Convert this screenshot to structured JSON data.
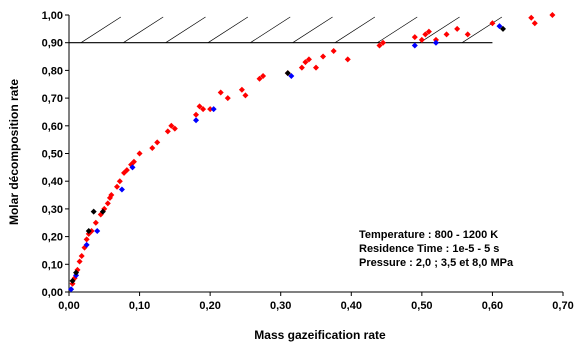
{
  "chart_data": {
    "type": "scatter",
    "xlabel": "Mass gazeification rate",
    "ylabel": "Molar décomposition rate",
    "xlim": [
      0,
      0.7
    ],
    "ylim": [
      0,
      1
    ],
    "x_ticks": [
      "0,00",
      "0,10",
      "0,20",
      "0,30",
      "0,40",
      "0,50",
      "0,60",
      "0,70"
    ],
    "y_ticks": [
      "0,00",
      "0,10",
      "0,20",
      "0,30",
      "0,40",
      "0,50",
      "0,60",
      "0,70",
      "0,80",
      "0,90",
      "1,00"
    ],
    "grid": false,
    "legend": "none",
    "reference_line": {
      "y": 0.9,
      "x_range": [
        0,
        0.6
      ],
      "hatched_region_above": true
    },
    "annotations": [
      "Temperature : 800 - 1200 K",
      "Residence Time : 1e-5 - 5 s",
      "Pressure : 2,0 ; 3,5 et 8,0 MPa"
    ],
    "series": [
      {
        "color": "#ff0000",
        "marker": "diamond",
        "points": [
          [
            0.005,
            0.03
          ],
          [
            0.008,
            0.05
          ],
          [
            0.012,
            0.08
          ],
          [
            0.015,
            0.11
          ],
          [
            0.018,
            0.13
          ],
          [
            0.022,
            0.16
          ],
          [
            0.025,
            0.19
          ],
          [
            0.028,
            0.21
          ],
          [
            0.032,
            0.22
          ],
          [
            0.038,
            0.25
          ],
          [
            0.045,
            0.28
          ],
          [
            0.05,
            0.3
          ],
          [
            0.055,
            0.32
          ],
          [
            0.058,
            0.34
          ],
          [
            0.06,
            0.35
          ],
          [
            0.068,
            0.38
          ],
          [
            0.072,
            0.4
          ],
          [
            0.078,
            0.43
          ],
          [
            0.082,
            0.44
          ],
          [
            0.088,
            0.46
          ],
          [
            0.092,
            0.47
          ],
          [
            0.1,
            0.5
          ],
          [
            0.118,
            0.52
          ],
          [
            0.125,
            0.54
          ],
          [
            0.14,
            0.58
          ],
          [
            0.145,
            0.6
          ],
          [
            0.15,
            0.59
          ],
          [
            0.18,
            0.64
          ],
          [
            0.185,
            0.67
          ],
          [
            0.19,
            0.66
          ],
          [
            0.2,
            0.66
          ],
          [
            0.215,
            0.72
          ],
          [
            0.225,
            0.7
          ],
          [
            0.245,
            0.73
          ],
          [
            0.25,
            0.71
          ],
          [
            0.27,
            0.77
          ],
          [
            0.275,
            0.78
          ],
          [
            0.31,
            0.79
          ],
          [
            0.33,
            0.81
          ],
          [
            0.335,
            0.83
          ],
          [
            0.34,
            0.84
          ],
          [
            0.35,
            0.81
          ],
          [
            0.36,
            0.85
          ],
          [
            0.375,
            0.87
          ],
          [
            0.395,
            0.84
          ],
          [
            0.44,
            0.89
          ],
          [
            0.445,
            0.9
          ],
          [
            0.49,
            0.92
          ],
          [
            0.5,
            0.91
          ],
          [
            0.505,
            0.93
          ],
          [
            0.51,
            0.94
          ],
          [
            0.52,
            0.91
          ],
          [
            0.535,
            0.93
          ],
          [
            0.55,
            0.95
          ],
          [
            0.565,
            0.93
          ],
          [
            0.6,
            0.97
          ],
          [
            0.655,
            0.99
          ],
          [
            0.66,
            0.97
          ],
          [
            0.685,
            1.0
          ]
        ]
      },
      {
        "color": "#0000ff",
        "marker": "diamond",
        "points": [
          [
            0.003,
            0.01
          ],
          [
            0.01,
            0.06
          ],
          [
            0.025,
            0.17
          ],
          [
            0.04,
            0.22
          ],
          [
            0.075,
            0.37
          ],
          [
            0.09,
            0.45
          ],
          [
            0.18,
            0.62
          ],
          [
            0.205,
            0.66
          ],
          [
            0.315,
            0.78
          ],
          [
            0.49,
            0.89
          ],
          [
            0.52,
            0.9
          ],
          [
            0.61,
            0.96
          ]
        ]
      },
      {
        "color": "#000000",
        "marker": "diamond",
        "points": [
          [
            0.005,
            0.04
          ],
          [
            0.01,
            0.07
          ],
          [
            0.028,
            0.22
          ],
          [
            0.035,
            0.29
          ],
          [
            0.048,
            0.29
          ],
          [
            0.31,
            0.79
          ],
          [
            0.615,
            0.95
          ]
        ]
      }
    ]
  }
}
